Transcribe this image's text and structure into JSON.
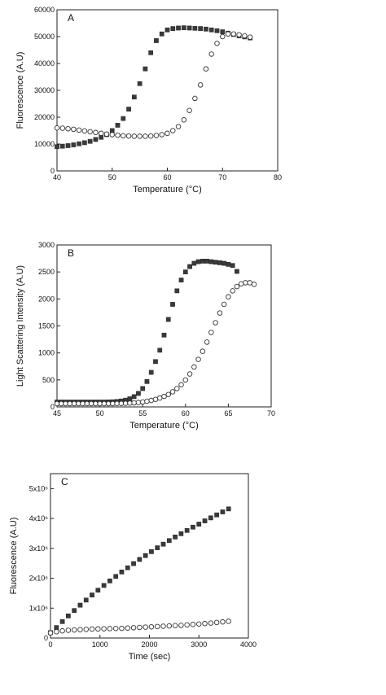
{
  "chart_data": [
    {
      "type": "scatter",
      "panel": "A",
      "xlabel": "Temperature (°C)",
      "ylabel": "Fluorescence (A.U)",
      "xlim": [
        40,
        80
      ],
      "ylim": [
        0,
        60000
      ],
      "xticks": [
        40,
        50,
        60,
        70,
        80
      ],
      "yticks": [
        0,
        10000,
        20000,
        30000,
        40000,
        50000,
        60000
      ],
      "ytick_labels": [
        "0",
        "10000",
        "20000",
        "30000",
        "40000",
        "50000",
        "60000"
      ],
      "grid": false,
      "series": [
        {
          "marker": "filled-square",
          "x": [
            40,
            41,
            42,
            43,
            44,
            45,
            46,
            47,
            48,
            49,
            50,
            51,
            52,
            53,
            54,
            55,
            56,
            57,
            58,
            59,
            60,
            61,
            62,
            63,
            64,
            65,
            66,
            67,
            68,
            69,
            70,
            71,
            72,
            73,
            74,
            75
          ],
          "y": [
            9000,
            9200,
            9400,
            9700,
            10100,
            10500,
            11000,
            11700,
            12500,
            13500,
            15000,
            17000,
            19500,
            23000,
            27500,
            32500,
            38000,
            44000,
            48500,
            51000,
            52500,
            53000,
            53200,
            53300,
            53200,
            53100,
            53000,
            52800,
            52500,
            52200,
            51800,
            51300,
            50800,
            50300,
            49900,
            49500
          ]
        },
        {
          "marker": "open-circle",
          "x": [
            40,
            41,
            42,
            43,
            44,
            45,
            46,
            47,
            48,
            49,
            50,
            51,
            52,
            53,
            54,
            55,
            56,
            57,
            58,
            59,
            60,
            61,
            62,
            63,
            64,
            65,
            66,
            67,
            68,
            69,
            70,
            71,
            72,
            73,
            74,
            75
          ],
          "y": [
            16000,
            15900,
            15700,
            15500,
            15200,
            14900,
            14600,
            14300,
            14000,
            13700,
            13500,
            13300,
            13100,
            13000,
            12900,
            12900,
            12900,
            13000,
            13200,
            13500,
            14000,
            15000,
            16500,
            19000,
            22500,
            27000,
            32000,
            38000,
            43500,
            47500,
            50000,
            51000,
            51000,
            50700,
            50300,
            49800
          ]
        }
      ]
    },
    {
      "type": "scatter",
      "panel": "B",
      "xlabel": "Temperature (°C)",
      "ylabel": "Light Scattering Intensity (A.U)",
      "xlim": [
        45,
        70
      ],
      "ylim": [
        0,
        3000
      ],
      "xticks": [
        45,
        50,
        55,
        60,
        65,
        70
      ],
      "yticks": [
        0,
        500,
        1000,
        1500,
        2000,
        2500,
        3000
      ],
      "ytick_labels": [
        "0",
        "500",
        "1000",
        "1500",
        "2000",
        "2500",
        "3000"
      ],
      "grid": false,
      "series": [
        {
          "marker": "filled-square",
          "x": [
            45,
            45.5,
            46,
            46.5,
            47,
            47.5,
            48,
            48.5,
            49,
            49.5,
            50,
            50.5,
            51,
            51.5,
            52,
            52.5,
            53,
            53.5,
            54,
            54.5,
            55,
            55.5,
            56,
            56.5,
            57,
            57.5,
            58,
            58.5,
            59,
            59.5,
            60,
            60.5,
            61,
            61.5,
            62,
            62.5,
            63,
            63.5,
            64,
            64.5,
            65,
            65.5,
            66
          ],
          "y": [
            90,
            90,
            90,
            90,
            90,
            90,
            90,
            90,
            90,
            90,
            90,
            90,
            92,
            95,
            100,
            110,
            125,
            150,
            190,
            250,
            340,
            470,
            640,
            840,
            1050,
            1330,
            1620,
            1900,
            2150,
            2350,
            2500,
            2600,
            2660,
            2690,
            2700,
            2700,
            2690,
            2680,
            2670,
            2660,
            2640,
            2620,
            2510
          ]
        },
        {
          "marker": "open-circle",
          "x": [
            45,
            45.5,
            46,
            46.5,
            47,
            47.5,
            48,
            48.5,
            49,
            49.5,
            50,
            50.5,
            51,
            51.5,
            52,
            52.5,
            53,
            53.5,
            54,
            54.5,
            55,
            55.5,
            56,
            56.5,
            57,
            57.5,
            58,
            58.5,
            59,
            59.5,
            60,
            60.5,
            61,
            61.5,
            62,
            62.5,
            63,
            63.5,
            64,
            64.5,
            65,
            65.5,
            66,
            66.5,
            67,
            67.5,
            68
          ],
          "y": [
            60,
            60,
            60,
            60,
            60,
            60,
            60,
            60,
            60,
            60,
            60,
            60,
            60,
            60,
            62,
            64,
            66,
            70,
            75,
            82,
            92,
            105,
            120,
            140,
            165,
            195,
            230,
            280,
            340,
            410,
            500,
            610,
            740,
            880,
            1030,
            1200,
            1380,
            1560,
            1740,
            1900,
            2040,
            2150,
            2230,
            2280,
            2300,
            2300,
            2270
          ]
        }
      ]
    },
    {
      "type": "scatter",
      "panel": "C",
      "xlabel": "Time (sec)",
      "ylabel": "Fluorescence (A.U)",
      "xlim": [
        0,
        4000
      ],
      "ylim": [
        0,
        5500000
      ],
      "xticks": [
        0,
        1000,
        2000,
        3000,
        4000
      ],
      "yticks": [
        0,
        1000000,
        2000000,
        3000000,
        4000000,
        5000000
      ],
      "ytick_labels": [
        "0",
        "1x10⁶",
        "2x10⁶",
        "3x10⁶",
        "4x10⁶",
        "5x10⁶"
      ],
      "grid": false,
      "series": [
        {
          "marker": "filled-square",
          "x": [
            0,
            120,
            240,
            360,
            480,
            600,
            720,
            840,
            960,
            1080,
            1200,
            1320,
            1440,
            1560,
            1680,
            1800,
            1920,
            2040,
            2160,
            2280,
            2400,
            2520,
            2640,
            2760,
            2880,
            3000,
            3120,
            3240,
            3360,
            3480,
            3600
          ],
          "y": [
            180000,
            350000,
            550000,
            740000,
            920000,
            1100000,
            1270000,
            1440000,
            1600000,
            1760000,
            1910000,
            2060000,
            2210000,
            2350000,
            2490000,
            2630000,
            2760000,
            2890000,
            3020000,
            3140000,
            3260000,
            3380000,
            3490000,
            3600000,
            3710000,
            3810000,
            3920000,
            4020000,
            4120000,
            4220000,
            4320000
          ]
        },
        {
          "marker": "open-circle",
          "x": [
            0,
            120,
            240,
            360,
            480,
            600,
            720,
            840,
            960,
            1080,
            1200,
            1320,
            1440,
            1560,
            1680,
            1800,
            1920,
            2040,
            2160,
            2280,
            2400,
            2520,
            2640,
            2760,
            2880,
            3000,
            3120,
            3240,
            3360,
            3480,
            3600
          ],
          "y": [
            170000,
            210000,
            240000,
            260000,
            270000,
            280000,
            290000,
            300000,
            305000,
            310000,
            315000,
            320000,
            325000,
            335000,
            345000,
            355000,
            365000,
            375000,
            385000,
            395000,
            405000,
            415000,
            425000,
            440000,
            455000,
            470000,
            485000,
            500000,
            520000,
            540000,
            560000
          ]
        }
      ]
    }
  ]
}
